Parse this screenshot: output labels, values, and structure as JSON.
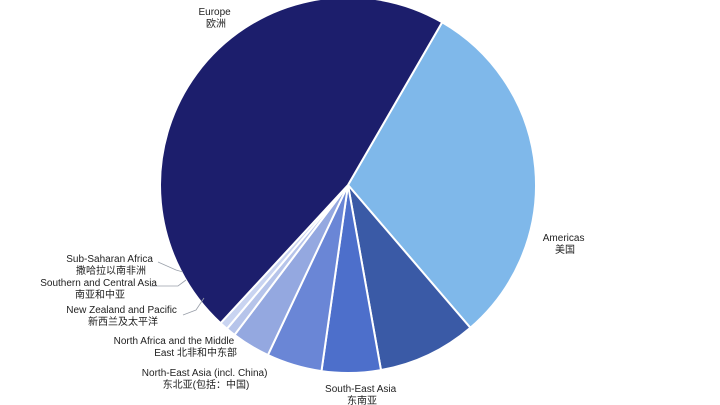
{
  "chart_data": {
    "type": "pie",
    "title": "",
    "unit": "share",
    "slices": [
      {
        "en": "Europe",
        "zh": "欧洲",
        "value": 45.0,
        "color": "#1c1e6c"
      },
      {
        "en": "Americas",
        "zh": "美国",
        "value": 29.4,
        "color": "#7fb8ea"
      },
      {
        "en": "South-East Asia",
        "zh": "东南亚",
        "value": 8.2,
        "color": "#3a5aa6"
      },
      {
        "en": "North-East Asia (incl. China)",
        "zh": "东北亚(包括：中国)",
        "value": 4.9,
        "color": "#4d6fcb"
      },
      {
        "en": "North Africa and the Middle East",
        "zh": "北非和中东部",
        "value": 4.6,
        "color": "#6a86d6"
      },
      {
        "en": "New Zealand and Pacific",
        "zh": "新西兰及太平洋",
        "value": 3.2,
        "color": "#94a8e0"
      },
      {
        "en": "Southern and Central Asia",
        "zh": "南亚和中亚",
        "value": 0.8,
        "color": "#b6c4ea"
      },
      {
        "en": "Sub-Saharan Africa",
        "zh": "撒哈拉以南非洲",
        "value": 0.7,
        "color": "#c9d4f1"
      }
    ],
    "legend": "none"
  }
}
